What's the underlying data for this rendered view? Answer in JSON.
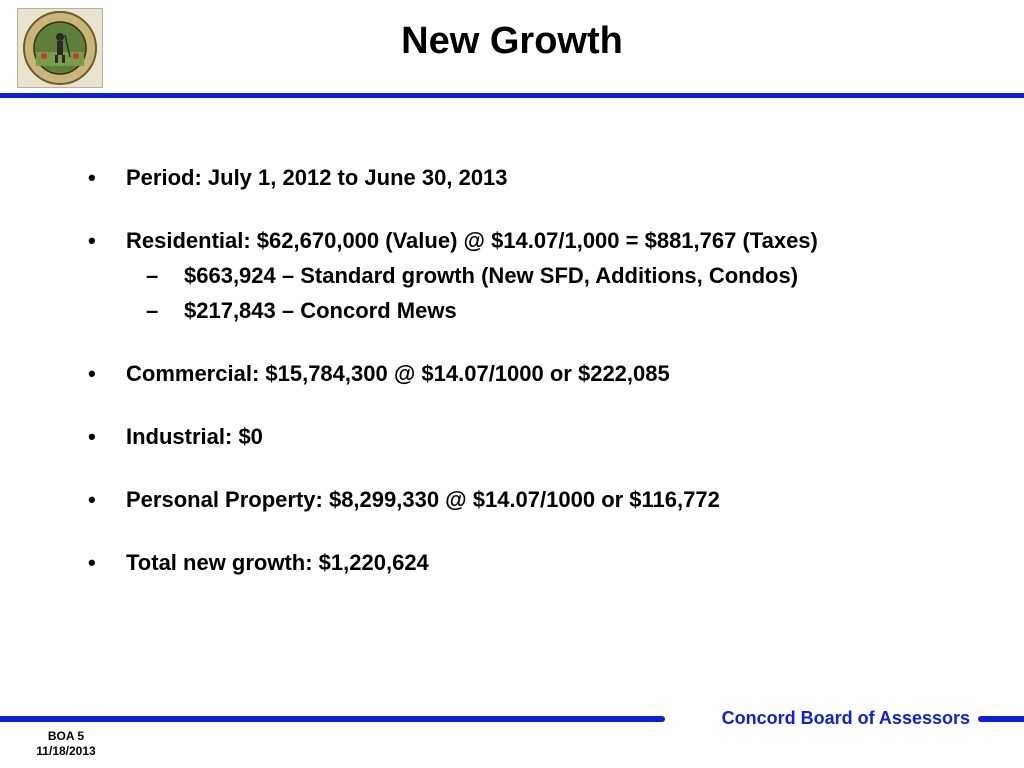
{
  "title": "New Growth",
  "seal": {
    "name": "concord-seal"
  },
  "bullets": [
    {
      "text": "Period: July 1, 2012 to June 30, 2013"
    },
    {
      "text": "Residential: $62,670,000 (Value) @ $14.07/1,000 = $881,767 (Taxes)",
      "subs": [
        "$663,924 – Standard growth (New SFD, Additions, Condos)",
        "$217,843 – Concord Mews"
      ]
    },
    {
      "text": "Commercial: $15,784,300 @ $14.07/1000 or $222,085"
    },
    {
      "text": "Industrial: $0"
    },
    {
      "text": "Personal Property: $8,299,330 @ $14.07/1000 or $116,772"
    },
    {
      "text": "Total new growth: $1,220,624"
    }
  ],
  "bullet_symbol": "•",
  "dash_symbol": "–",
  "footer": {
    "org": "Concord Board of Assessors",
    "slide": "BOA 5",
    "date": "11/18/2013"
  },
  "colors": {
    "accent": "#0b1fdc"
  }
}
